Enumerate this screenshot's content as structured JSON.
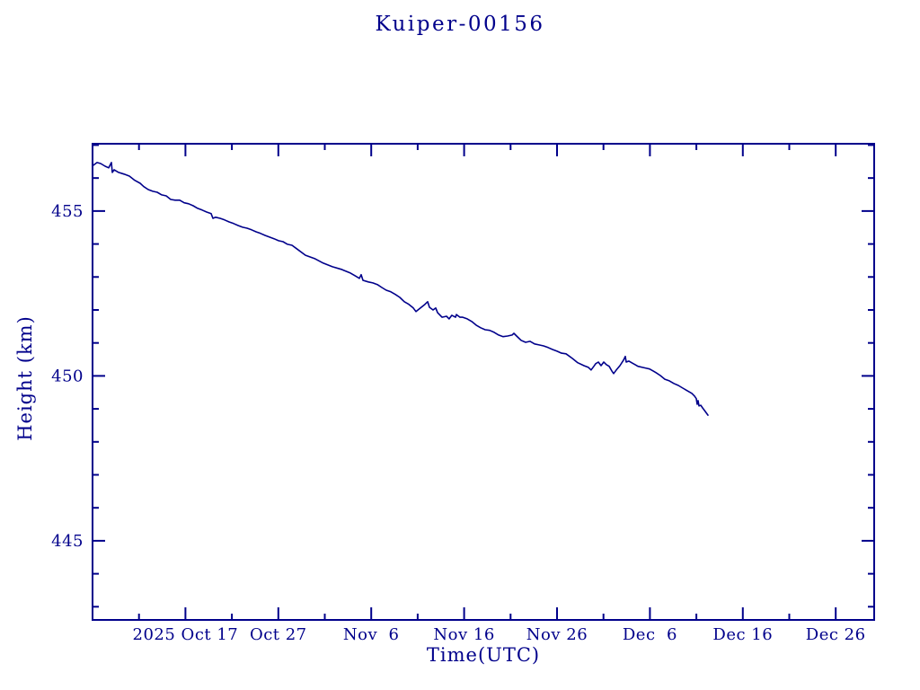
{
  "window": {
    "background_color": "#FFFFFF"
  },
  "chart_data": {
    "type": "line",
    "title": "Kuiper-00156",
    "xlabel": "Time(UTC)",
    "ylabel": "Height (km)",
    "line_color": "#00008B",
    "axis_color": "#00008B",
    "background_color": "#FFFFFF",
    "grid": false,
    "legend": "none",
    "frame": "box with inward ticks on all four sides",
    "x_axis": {
      "range_days": [
        0,
        84.14
      ],
      "major_tick_days": [
        10,
        20,
        30,
        40,
        50,
        60,
        70,
        80
      ],
      "major_tick_labels": [
        "2025 Oct 17",
        "Oct 27",
        "Nov  6",
        "Nov 16",
        "Nov 26",
        "Dec  6",
        "Dec 16",
        "Dec 26"
      ],
      "minor_tick_days": [
        5,
        15,
        25,
        35,
        45,
        55,
        65,
        75
      ]
    },
    "y_axis": {
      "range_km": [
        442.6,
        457.04
      ],
      "major_ticks": [
        445,
        450,
        455
      ],
      "major_tick_labels": [
        "445",
        "450",
        "455"
      ],
      "minor_ticks": [
        443,
        444,
        446,
        447,
        448,
        449,
        451,
        452,
        453,
        454,
        456,
        457
      ]
    },
    "series": [
      {
        "name": "height",
        "x_days": [
          0.1,
          0.48,
          0.87,
          1.35,
          1.74,
          2.03,
          2.13,
          2.32,
          2.8,
          3.39,
          3.97,
          4.55,
          5.13,
          5.51,
          6.0,
          6.48,
          6.96,
          7.45,
          7.93,
          8.41,
          8.9,
          9.38,
          9.86,
          10.35,
          10.83,
          11.32,
          11.8,
          12.28,
          12.77,
          12.96,
          13.25,
          13.73,
          14.22,
          14.7,
          15.18,
          15.67,
          16.15,
          16.63,
          17.12,
          17.6,
          18.09,
          18.57,
          19.05,
          19.54,
          20.02,
          20.5,
          20.99,
          21.47,
          21.95,
          22.92,
          23.89,
          24.85,
          25.82,
          26.79,
          27.76,
          28.24,
          28.72,
          28.92,
          29.11,
          29.69,
          30.17,
          30.66,
          31.14,
          31.62,
          32.11,
          32.59,
          33.08,
          33.56,
          34.04,
          34.53,
          34.82,
          35.3,
          35.78,
          36.07,
          36.27,
          36.65,
          36.94,
          37.14,
          37.62,
          38.1,
          38.39,
          38.68,
          39.07,
          39.17,
          39.56,
          39.85,
          40.33,
          40.81,
          41.3,
          41.78,
          42.26,
          42.75,
          43.23,
          43.71,
          44.2,
          44.68,
          45.16,
          45.36,
          45.65,
          46.13,
          46.62,
          47.1,
          47.58,
          48.07,
          48.55,
          49.03,
          49.52,
          50.0,
          50.48,
          50.97,
          51.64,
          52.22,
          52.9,
          53.38,
          53.67,
          53.97,
          54.16,
          54.45,
          54.74,
          55.03,
          55.32,
          55.61,
          55.9,
          56.09,
          56.38,
          56.77,
          57.16,
          57.35,
          57.45,
          57.74,
          58.03,
          58.41,
          58.7,
          59.19,
          59.67,
          59.96,
          60.35,
          60.64,
          61.12,
          61.61,
          62.09,
          62.57,
          63.06,
          63.54,
          64.02,
          64.51,
          64.8,
          64.99,
          65.09,
          65.18,
          65.28,
          65.47,
          65.67,
          65.96,
          66.25
        ],
        "y_km": [
          456.39,
          456.47,
          456.44,
          456.36,
          456.31,
          456.47,
          456.17,
          456.25,
          456.17,
          456.12,
          456.06,
          455.93,
          455.84,
          455.74,
          455.65,
          455.6,
          455.57,
          455.49,
          455.46,
          455.35,
          455.33,
          455.33,
          455.25,
          455.22,
          455.16,
          455.08,
          455.03,
          454.97,
          454.92,
          454.78,
          454.81,
          454.78,
          454.73,
          454.67,
          454.62,
          454.56,
          454.51,
          454.48,
          454.43,
          454.37,
          454.32,
          454.26,
          454.21,
          454.16,
          454.1,
          454.07,
          453.99,
          453.96,
          453.86,
          453.66,
          453.56,
          453.42,
          453.31,
          453.23,
          453.12,
          453.04,
          452.96,
          453.07,
          452.9,
          452.85,
          452.82,
          452.77,
          452.68,
          452.6,
          452.55,
          452.47,
          452.38,
          452.25,
          452.17,
          452.06,
          451.95,
          452.06,
          452.17,
          452.25,
          452.08,
          452.0,
          452.06,
          451.92,
          451.78,
          451.81,
          451.73,
          451.84,
          451.78,
          451.86,
          451.78,
          451.78,
          451.73,
          451.65,
          451.54,
          451.46,
          451.4,
          451.38,
          451.32,
          451.24,
          451.19,
          451.21,
          451.24,
          451.29,
          451.21,
          451.08,
          451.02,
          451.05,
          450.97,
          450.94,
          450.91,
          450.86,
          450.8,
          450.75,
          450.69,
          450.67,
          450.53,
          450.4,
          450.31,
          450.26,
          450.18,
          450.29,
          450.37,
          450.42,
          450.31,
          450.42,
          450.34,
          450.29,
          450.15,
          450.07,
          450.18,
          450.31,
          450.48,
          450.59,
          450.42,
          450.45,
          450.4,
          450.34,
          450.29,
          450.26,
          450.23,
          450.21,
          450.15,
          450.1,
          450.01,
          449.9,
          449.85,
          449.77,
          449.71,
          449.63,
          449.55,
          449.47,
          449.39,
          449.31,
          449.14,
          449.25,
          449.09,
          449.11,
          449.03,
          448.92,
          448.81
        ]
      }
    ]
  }
}
